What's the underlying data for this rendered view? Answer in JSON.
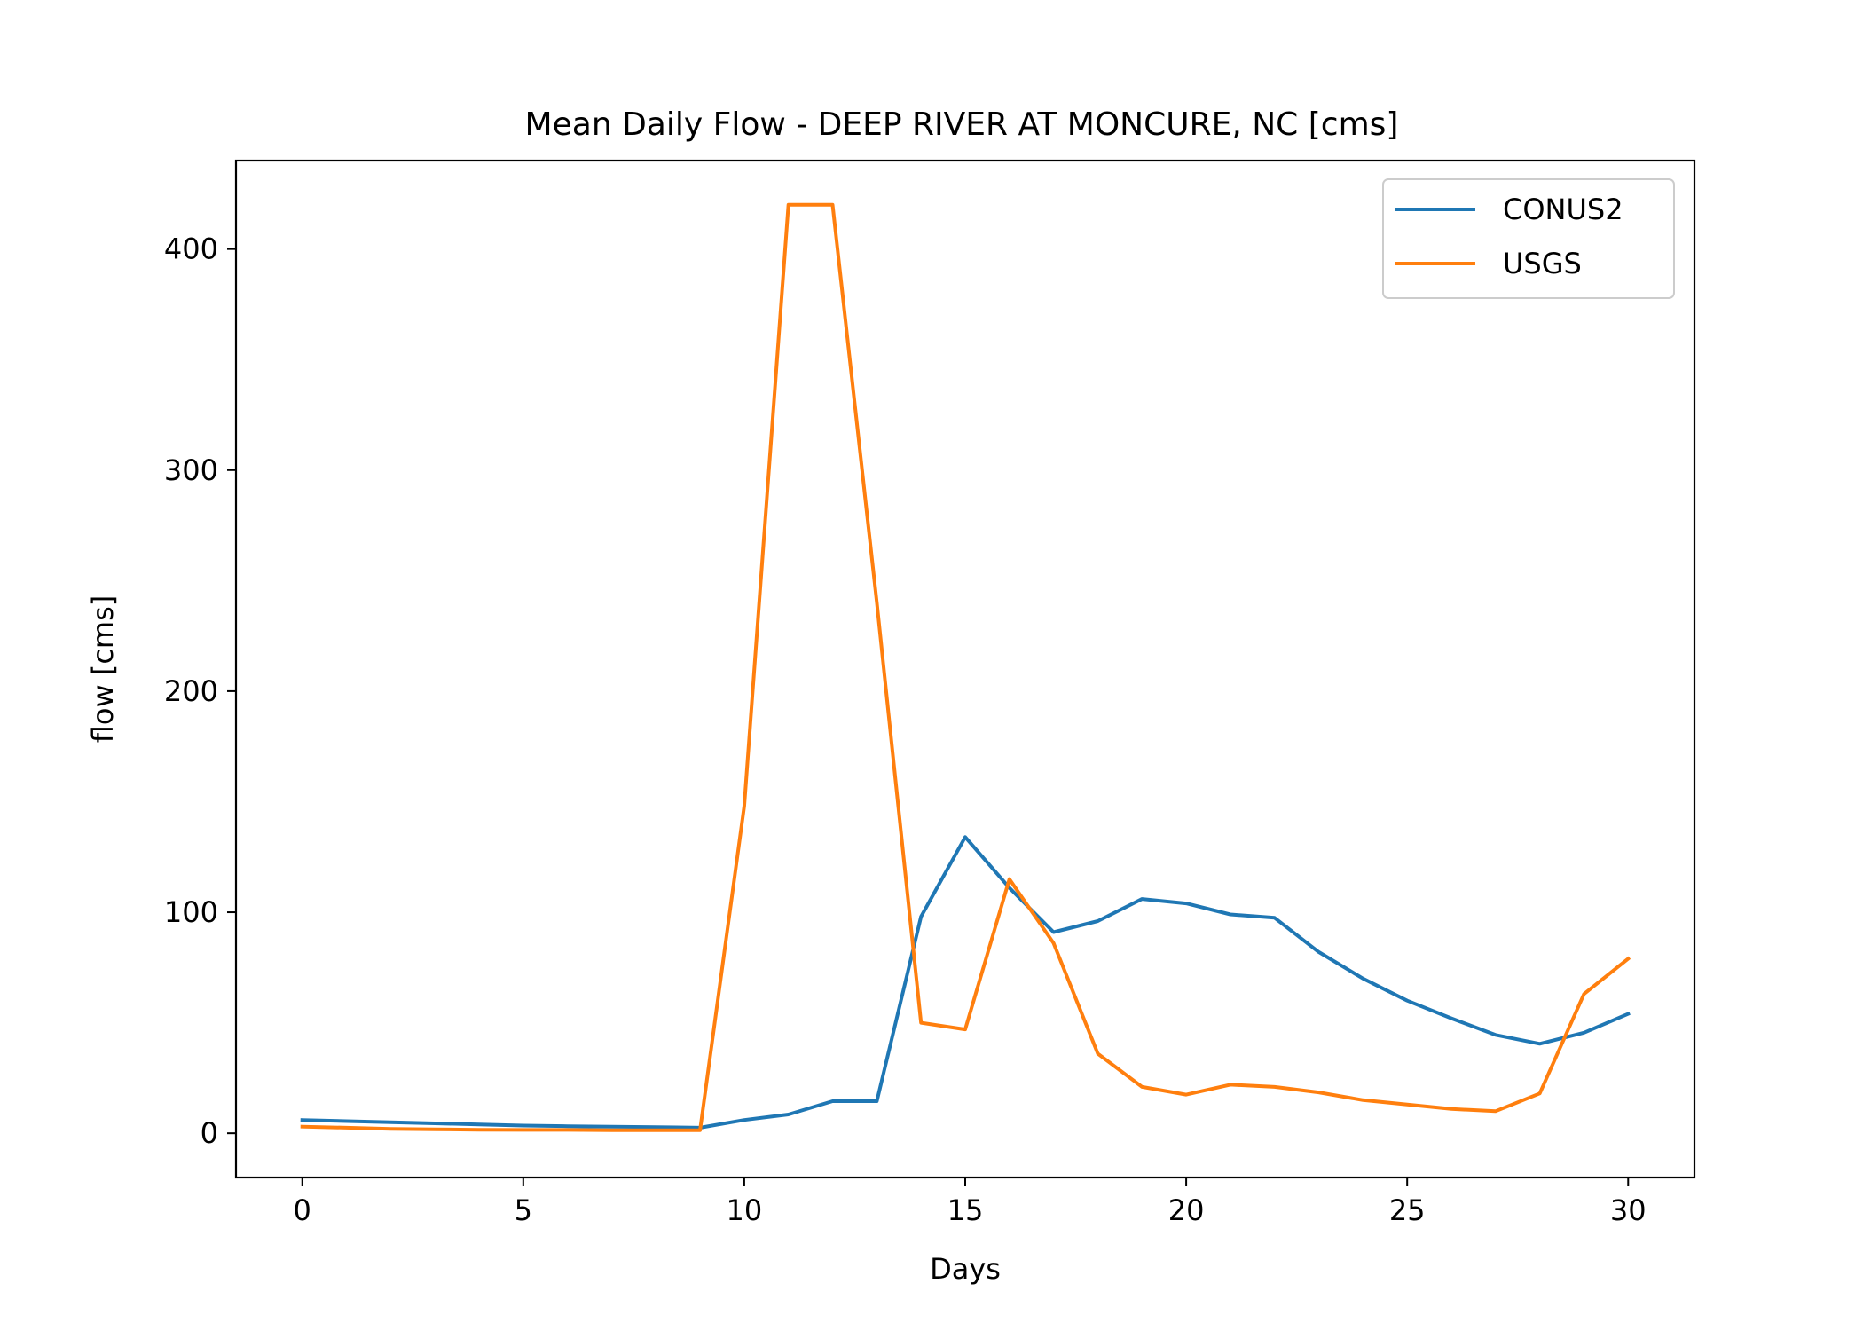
{
  "chart_data": {
    "type": "line",
    "title": "Mean Daily Flow - DEEP RIVER AT MONCURE, NC [cms]",
    "xlabel": "Days",
    "ylabel": "flow [cms]",
    "xlim": [
      -1.5,
      31.5
    ],
    "ylim": [
      -20,
      440
    ],
    "xticks": [
      0,
      5,
      10,
      15,
      20,
      25,
      30
    ],
    "yticks": [
      0,
      100,
      200,
      300,
      400
    ],
    "grid": false,
    "legend_position": "top-right",
    "x": [
      0,
      1,
      2,
      3,
      4,
      5,
      6,
      7,
      8,
      9,
      10,
      11,
      12,
      13,
      14,
      15,
      16,
      17,
      18,
      19,
      20,
      21,
      22,
      23,
      24,
      25,
      26,
      27,
      28,
      29,
      30
    ],
    "series": [
      {
        "name": "CONUS2",
        "color": "#1f77b4",
        "values": [
          6,
          5.5,
          5,
          4.5,
          4,
          3.5,
          3.2,
          3,
          2.8,
          2.5,
          6,
          8.5,
          14.5,
          14.5,
          98,
          134,
          111,
          91,
          96,
          106,
          104,
          99,
          97.5,
          82,
          70,
          60,
          52,
          44.5,
          40.5,
          45.5,
          54
        ]
      },
      {
        "name": "USGS",
        "color": "#ff7f0e",
        "values": [
          3,
          2.5,
          2,
          1.8,
          1.6,
          1.5,
          1.5,
          1.4,
          1.4,
          1.4,
          148,
          420,
          420,
          240,
          50,
          47,
          115,
          86,
          36,
          21,
          17.5,
          22,
          21,
          18.5,
          15,
          13,
          11,
          10,
          18,
          63,
          79
        ]
      }
    ]
  }
}
